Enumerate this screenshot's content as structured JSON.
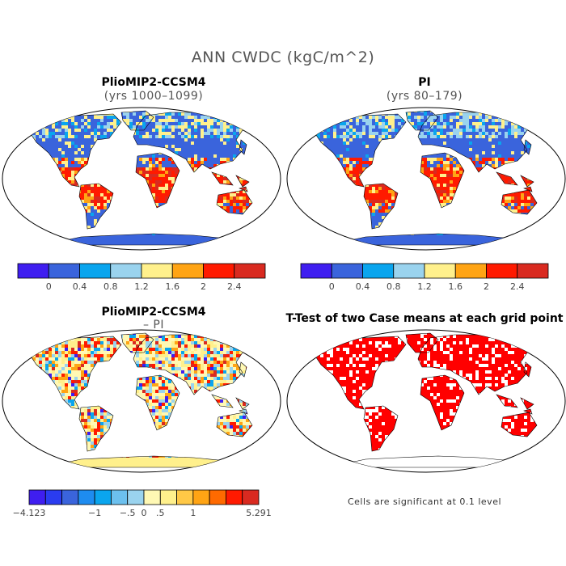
{
  "title": "ANN CWDC (kgC/m^2)",
  "panels": [
    {
      "title": "PlioMIP2-CCSM4",
      "subtitle": "(yrs 1000–1099)"
    },
    {
      "title": "PI",
      "subtitle": "(yrs 80–179)"
    },
    {
      "title": "PlioMIP2-CCSM4",
      "subtitle": "– PI"
    },
    {
      "title": "T-Test of two Case means at each grid point",
      "subtitle": ""
    }
  ],
  "significance_note": "Cells are significant at 0.1 level",
  "chart_data": [
    {
      "type": "heatmap",
      "title": "PlioMIP2-CCSM4",
      "subtitle": "(yrs 1000–1099)",
      "colorbar": {
        "colors": [
          "#3f1ef0",
          "#3a64dc",
          "#0aa5ee",
          "#9ad3ee",
          "#fff08c",
          "#ffa414",
          "#ff1a00",
          "#d92a20"
        ],
        "tick_labels": [
          "0",
          "0.4",
          "0.8",
          "1.2",
          "1.6",
          "2",
          "2.4"
        ]
      }
    },
    {
      "type": "heatmap",
      "title": "PI",
      "subtitle": "(yrs 80–179)",
      "colorbar": {
        "colors": [
          "#3f1ef0",
          "#3a64dc",
          "#0aa5ee",
          "#9ad3ee",
          "#fff08c",
          "#ffa414",
          "#ff1a00",
          "#d92a20"
        ],
        "tick_labels": [
          "0",
          "0.4",
          "0.8",
          "1.2",
          "1.6",
          "2",
          "2.4"
        ]
      }
    },
    {
      "type": "heatmap",
      "title": "PlioMIP2-CCSM4",
      "subtitle": "– PI",
      "colorbar": {
        "colors": [
          "#3f1ef0",
          "#2a3cf0",
          "#3a64dc",
          "#1e8cf0",
          "#0aa5ee",
          "#6cc0ee",
          "#9ad3ee",
          "#fff8b4",
          "#fff08c",
          "#ffc846",
          "#ffa414",
          "#ff6a00",
          "#ff1a00",
          "#d92a20"
        ],
        "tick_labels": [
          "−4.123",
          "−1",
          "−.5",
          "0",
          ".5",
          "1",
          "5.291"
        ]
      }
    },
    {
      "type": "heatmap",
      "title": "T-Test of two Case means at each grid point",
      "note": "Cells are significant at 0.1 level",
      "colors": {
        "significant": "#ff0000",
        "land": "#ffffff"
      }
    }
  ]
}
